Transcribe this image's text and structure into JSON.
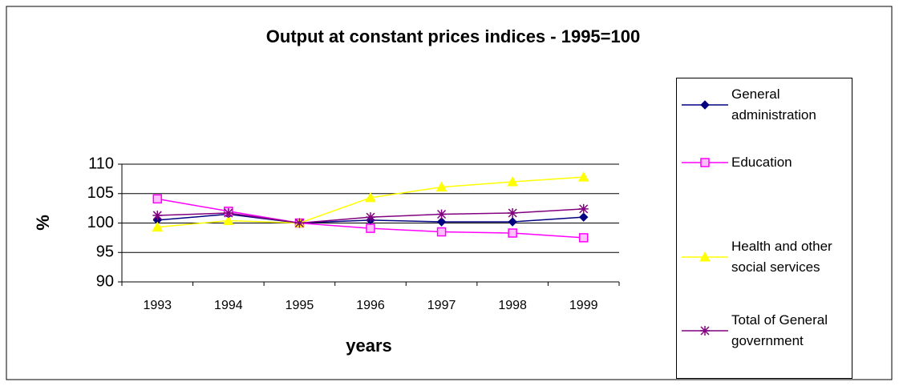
{
  "chart_data": {
    "type": "line",
    "title": "Output at constant prices indices - 1995=100",
    "x_label": "years",
    "y_label": "%",
    "categories": [
      "1993",
      "1994",
      "1995",
      "1996",
      "1997",
      "1998",
      "1999"
    ],
    "ylim": [
      90,
      110
    ],
    "yticks": [
      90,
      95,
      100,
      105,
      110
    ],
    "grid": true,
    "series": [
      {
        "name": "General administration",
        "color": "#000080",
        "marker": "diamond",
        "values": [
          100.5,
          101.5,
          100,
          100.5,
          100.2,
          100.2,
          101
        ]
      },
      {
        "name": "Education",
        "color": "#ff00ff",
        "marker": "square",
        "values": [
          104.1,
          102,
          100,
          99.1,
          98.5,
          98.3,
          97.5
        ]
      },
      {
        "name": "Health and other social services",
        "color": "#ffff00",
        "marker": "triangle",
        "values": [
          99.3,
          100.4,
          100,
          104.3,
          106.1,
          107,
          107.8
        ]
      },
      {
        "name": "Total of General government",
        "color": "#800080",
        "marker": "asterisk",
        "values": [
          101.3,
          101.7,
          100,
          101,
          101.5,
          101.7,
          102.4
        ]
      }
    ]
  }
}
